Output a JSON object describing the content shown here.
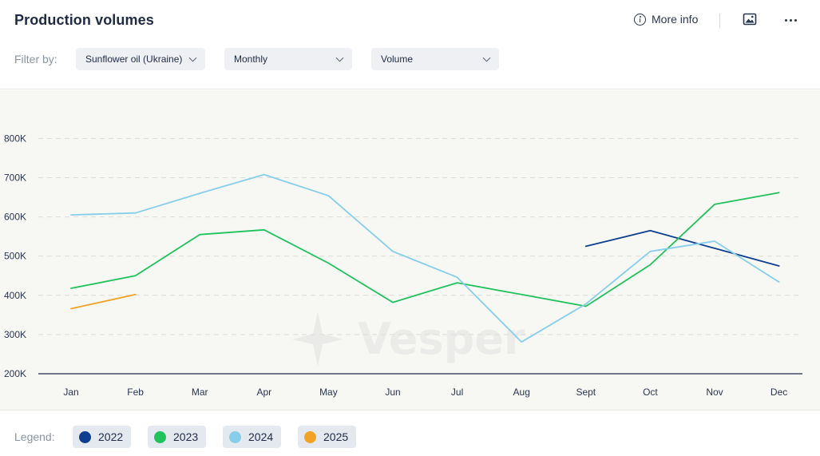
{
  "header": {
    "title": "Production volumes",
    "more_info_label": "More info",
    "image_icon": "image-icon",
    "menu_icon": "more-horizontal-icon"
  },
  "filters": {
    "label": "Filter by:",
    "commodity": "Sunflower oil (Ukraine)",
    "frequency": "Monthly",
    "metric": "Volume"
  },
  "watermark": "Vesper",
  "legend": {
    "label": "Legend:",
    "items": [
      {
        "label": "2022",
        "color": "#0d3e8f"
      },
      {
        "label": "2023",
        "color": "#1fc25b"
      },
      {
        "label": "2024",
        "color": "#87ceeb"
      },
      {
        "label": "2025",
        "color": "#f2a224"
      }
    ]
  },
  "chart_data": {
    "type": "line",
    "categories": [
      "Jan",
      "Feb",
      "Mar",
      "Apr",
      "May",
      "Jun",
      "Jul",
      "Aug",
      "Sept",
      "Oct",
      "Nov",
      "Dec"
    ],
    "ylim": [
      200000,
      820000
    ],
    "yticks": [
      200000,
      300000,
      400000,
      500000,
      600000,
      700000,
      800000
    ],
    "ytick_labels": [
      "200K",
      "300K",
      "400K",
      "500K",
      "600K",
      "700K",
      "800K"
    ],
    "grid": true,
    "series": [
      {
        "name": "2022",
        "color": "#0d3e8f",
        "values": [
          null,
          null,
          null,
          null,
          null,
          null,
          null,
          null,
          525000,
          565000,
          520000,
          475000
        ]
      },
      {
        "name": "2023",
        "color": "#1fc25b",
        "values": [
          418000,
          450000,
          555000,
          567000,
          482000,
          382000,
          432000,
          402000,
          372000,
          478000,
          632000,
          662000
        ]
      },
      {
        "name": "2024",
        "color": "#87ceeb",
        "values": [
          605000,
          610000,
          660000,
          708000,
          654000,
          512000,
          446000,
          281000,
          378000,
          512000,
          538000,
          434000
        ]
      },
      {
        "name": "2025",
        "color": "#f2a224",
        "values": [
          366000,
          402000,
          null,
          null,
          null,
          null,
          null,
          null,
          null,
          null,
          null,
          null
        ]
      }
    ]
  }
}
